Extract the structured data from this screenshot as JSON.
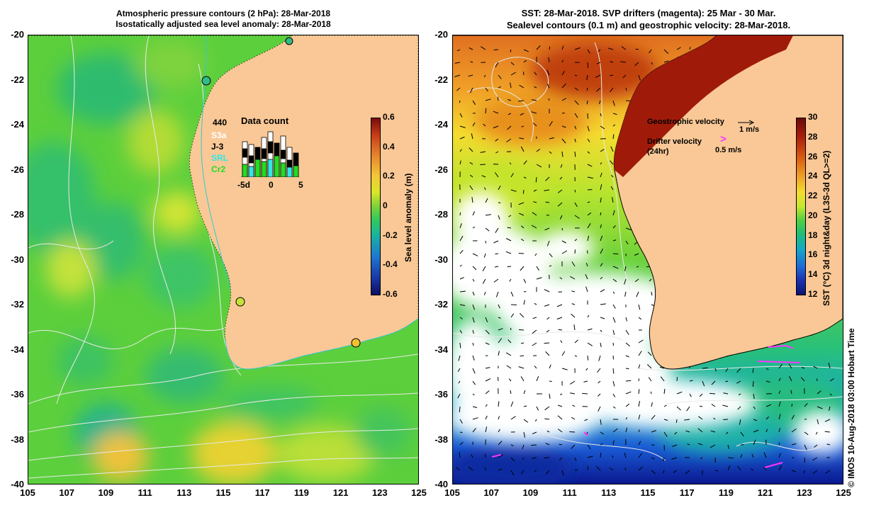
{
  "left_panel": {
    "title_line1": "Atmospheric pressure contours (2 hPa): 28-Mar-2018",
    "title_line2": "Isostatically adjusted sea level anomaly: 28-Mar-2018",
    "y_ticks": [
      "-20",
      "-22",
      "-24",
      "-26",
      "-28",
      "-30",
      "-32",
      "-34",
      "-36",
      "-38",
      "-40"
    ],
    "x_ticks": [
      "105",
      "107",
      "109",
      "111",
      "113",
      "115",
      "117",
      "119",
      "121",
      "123",
      "125"
    ],
    "colorbar_ticks": [
      "0.6",
      "0.4",
      "0.2",
      "0",
      "-0.2",
      "-0.4",
      "-0.6"
    ],
    "colorbar_label": "Sea level anomaly (m)",
    "data_count": {
      "total": "440",
      "title": "Data count",
      "satellites": [
        {
          "name": "S3a",
          "color": "#ffffff"
        },
        {
          "name": "J-3",
          "color": "#000000"
        },
        {
          "name": "SRL",
          "color": "#33e6e6"
        },
        {
          "name": "Cr2",
          "color": "#22dd22"
        }
      ],
      "x_ticks": [
        "-5d",
        "0",
        "5"
      ]
    }
  },
  "right_panel": {
    "title_line1": "SST: 28-Mar-2018. SVP drifters (magenta): 25 Mar - 30 Mar.",
    "title_line2": "Sealevel contours (0.1 m) and geostrophic velocity: 28-Mar-2018.",
    "y_ticks": [
      "-20",
      "-22",
      "-24",
      "-26",
      "-28",
      "-30",
      "-32",
      "-34",
      "-36",
      "-38",
      "-40"
    ],
    "x_ticks": [
      "105",
      "107",
      "109",
      "111",
      "113",
      "115",
      "117",
      "119",
      "121",
      "123",
      "125"
    ],
    "colorbar_ticks": [
      "30",
      "28",
      "26",
      "24",
      "22",
      "20",
      "18",
      "16",
      "14",
      "12"
    ],
    "colorbar_label": "SST (°C) 3d night&day (L3S-3d QL>=2)",
    "legend": {
      "geo_label": "Geostrophic velocity",
      "geo_scale": "1 m/s",
      "drifter_label": "Drifter velocity",
      "drifter_sub": "(24hr)",
      "drifter_scale": "0.5 m/s"
    }
  },
  "credit": "© IMOS 10-Aug-2018 03:00 Hobart Time",
  "colors": {
    "land": "#f9c896",
    "drifter": "#ff33ff",
    "contour": "#e8e8e8",
    "coast_line": "#33cccc"
  }
}
